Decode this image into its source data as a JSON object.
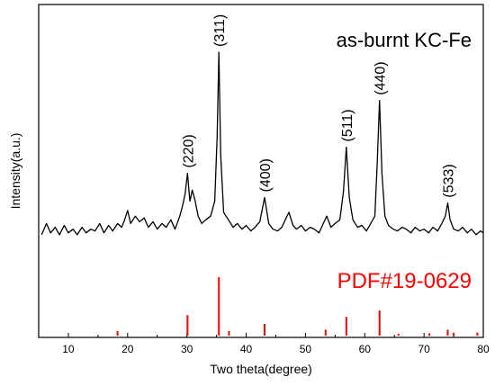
{
  "chart_data": {
    "type": "line",
    "title": "",
    "xlabel": "Two theta(degree)",
    "ylabel": "Intensity(a.u.)",
    "xlim": [
      5,
      80
    ],
    "xticks": [
      10,
      20,
      30,
      40,
      50,
      60,
      70,
      80
    ],
    "y_ticks_shown": false,
    "grid": false,
    "sample_label": "as-burnt KC-Fe",
    "reference_label": "PDF#19-0629",
    "colors": {
      "pattern": "#000000",
      "reference": "#ff0000"
    },
    "peaks": [
      {
        "x": 30.1,
        "label": "(220)",
        "intensity": 0.35
      },
      {
        "x": 35.4,
        "label": "(311)",
        "intensity": 1.0
      },
      {
        "x": 43.1,
        "label": "(400)",
        "intensity": 0.22
      },
      {
        "x": 56.9,
        "label": "(511)",
        "intensity": 0.49
      },
      {
        "x": 62.5,
        "label": "(440)",
        "intensity": 0.74
      },
      {
        "x": 74.0,
        "label": "(533)",
        "intensity": 0.19
      }
    ],
    "series": [
      {
        "x": [
          5.5,
          6.3,
          7.0,
          7.8,
          8.5,
          9.3,
          10.0,
          10.8,
          11.5,
          12.3,
          13.0,
          13.8,
          14.5,
          15.3,
          16.0,
          16.8,
          17.5,
          18.3,
          19.0,
          19.5,
          20.0,
          20.5,
          21.3,
          22.0,
          22.8,
          23.5,
          24.3,
          25.0,
          25.8,
          26.5,
          27.3,
          28.0,
          28.8,
          29.3,
          29.7,
          30.1,
          30.5,
          30.9,
          31.4,
          31.9,
          32.5,
          33.2,
          34.0,
          34.7,
          35.1,
          35.4,
          35.7,
          36.2,
          37.0,
          37.8,
          38.5,
          39.3,
          40.0,
          40.8,
          41.5,
          42.3,
          43.1,
          43.8,
          44.5,
          45.3,
          46.0,
          46.6,
          47.2,
          47.9,
          48.5,
          49.3,
          50.0,
          50.8,
          51.5,
          52.3,
          53.0,
          53.6,
          54.3,
          55.0,
          55.8,
          56.4,
          56.9,
          57.4,
          58.0,
          58.8,
          59.5,
          60.3,
          61.0,
          61.7,
          62.1,
          62.5,
          62.9,
          63.4,
          64.0,
          64.8,
          65.5,
          66.3,
          67.0,
          67.8,
          68.5,
          69.3,
          70.0,
          70.8,
          71.5,
          72.3,
          73.0,
          73.6,
          74.0,
          74.4,
          75.0,
          75.8,
          76.5,
          77.3,
          78.0,
          78.8,
          79.5,
          80.0
        ],
        "values": [
          0.02,
          0.08,
          0.03,
          0.06,
          0.02,
          0.07,
          0.03,
          0.05,
          0.02,
          0.06,
          0.03,
          0.05,
          0.04,
          0.08,
          0.03,
          0.07,
          0.04,
          0.08,
          0.06,
          0.1,
          0.15,
          0.08,
          0.12,
          0.09,
          0.11,
          0.06,
          0.09,
          0.05,
          0.08,
          0.06,
          0.1,
          0.05,
          0.12,
          0.18,
          0.24,
          0.35,
          0.2,
          0.26,
          0.2,
          0.12,
          0.08,
          0.1,
          0.12,
          0.2,
          0.55,
          1.0,
          0.45,
          0.14,
          0.1,
          0.06,
          0.08,
          0.05,
          0.07,
          0.04,
          0.06,
          0.09,
          0.22,
          0.08,
          0.05,
          0.04,
          0.06,
          0.1,
          0.14,
          0.07,
          0.05,
          0.07,
          0.04,
          0.06,
          0.05,
          0.03,
          0.08,
          0.12,
          0.06,
          0.08,
          0.1,
          0.25,
          0.49,
          0.22,
          0.1,
          0.06,
          0.07,
          0.04,
          0.08,
          0.12,
          0.4,
          0.74,
          0.35,
          0.12,
          0.07,
          0.05,
          0.04,
          0.06,
          0.05,
          0.03,
          0.06,
          0.04,
          0.05,
          0.03,
          0.06,
          0.04,
          0.08,
          0.12,
          0.19,
          0.1,
          0.05,
          0.04,
          0.06,
          0.03,
          0.05,
          0.02,
          0.04,
          0.03
        ]
      }
    ],
    "reference_pattern": {
      "x": [
        18.3,
        30.1,
        35.4,
        37.1,
        43.1,
        53.4,
        56.9,
        62.5,
        65.7,
        70.9,
        74.0,
        75.0,
        79.0
      ],
      "values": [
        0.08,
        0.35,
        1.0,
        0.08,
        0.2,
        0.1,
        0.32,
        0.43,
        0.03,
        0.04,
        0.1,
        0.05,
        0.05
      ]
    }
  }
}
